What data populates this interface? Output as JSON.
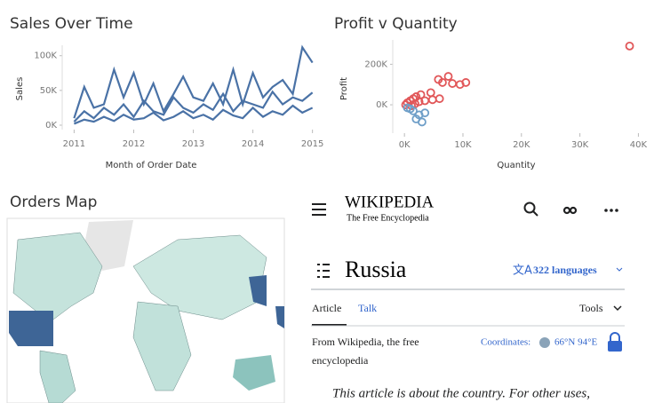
{
  "chart_data": [
    {
      "type": "line",
      "title": "Sales Over Time",
      "y_label": "Sales",
      "x_label": "Month of Order Date",
      "x": [
        2011,
        2011.17,
        2011.33,
        2011.5,
        2011.67,
        2011.83,
        2012,
        2012.17,
        2012.33,
        2012.5,
        2012.67,
        2012.83,
        2013,
        2013.17,
        2013.33,
        2013.5,
        2013.67,
        2013.83,
        2014,
        2014.17,
        2014.33,
        2014.5,
        2014.67,
        2014.83,
        2015
      ],
      "xlim": [
        2010.8,
        2015.05
      ],
      "xticks": [
        2011,
        2012,
        2013,
        2014,
        2015
      ],
      "ylim": [
        0,
        115000
      ],
      "yticks": [
        {
          "value": 0,
          "label": "0K"
        },
        {
          "value": 50000,
          "label": "50K"
        },
        {
          "value": 100000,
          "label": "100K"
        }
      ],
      "series": [
        {
          "color": "#4a72a6",
          "values": [
            10000,
            55000,
            25000,
            30000,
            80000,
            40000,
            75000,
            30000,
            60000,
            20000,
            45000,
            70000,
            40000,
            35000,
            60000,
            30000,
            80000,
            30000,
            75000,
            40000,
            55000,
            65000,
            45000,
            112000,
            90000
          ]
        },
        {
          "color": "#4a72a6",
          "values": [
            5000,
            20000,
            10000,
            25000,
            15000,
            30000,
            12000,
            35000,
            20000,
            15000,
            40000,
            25000,
            18000,
            30000,
            22000,
            45000,
            20000,
            35000,
            30000,
            25000,
            48000,
            30000,
            40000,
            35000,
            47000
          ]
        },
        {
          "color": "#4a72a6",
          "values": [
            2000,
            8000,
            5000,
            12000,
            6000,
            15000,
            8000,
            10000,
            18000,
            7000,
            12000,
            20000,
            10000,
            15000,
            8000,
            22000,
            14000,
            10000,
            25000,
            12000,
            20000,
            15000,
            28000,
            18000,
            25000
          ]
        }
      ]
    },
    {
      "type": "scatter",
      "title": "Profit v Quantity",
      "y_label": "Profit",
      "x_label": "Quantity",
      "xlim": [
        -2000,
        41000
      ],
      "xticks": [
        {
          "value": 0,
          "label": "0K"
        },
        {
          "value": 10000,
          "label": "10K"
        },
        {
          "value": 20000,
          "label": "20K"
        },
        {
          "value": 30000,
          "label": "30K"
        },
        {
          "value": 40000,
          "label": "40K"
        }
      ],
      "ylim": [
        -140000,
        320000
      ],
      "yticks": [
        {
          "value": 0,
          "label": "0K"
        },
        {
          "value": 200000,
          "label": "200K"
        }
      ],
      "series": [
        {
          "color": "#e15759",
          "x": [
            38500,
            10500,
            9500,
            7500,
            6500,
            5800,
            8200,
            4500,
            3500,
            2800,
            2000,
            1500,
            1000,
            500,
            200,
            6000,
            4800,
            2500,
            1800,
            1200
          ],
          "y": [
            290000,
            110000,
            100000,
            140000,
            110000,
            125000,
            105000,
            60000,
            20000,
            50000,
            40000,
            30000,
            20000,
            10000,
            0,
            30000,
            25000,
            15000,
            5000,
            -5000
          ]
        },
        {
          "color": "#6f9fc8",
          "x": [
            1500,
            2500,
            2000,
            3000,
            1000,
            500,
            3500
          ],
          "y": [
            -30000,
            -50000,
            -70000,
            -85000,
            -20000,
            -15000,
            -40000
          ]
        }
      ]
    }
  ],
  "map": {
    "title": "Orders Map"
  },
  "wikipedia": {
    "logo": "WIKIPEDIA",
    "tagline": "The Free Encyclopedia",
    "heading": "Russia",
    "languages": "322 languages",
    "tabs": [
      "Article",
      "Talk"
    ],
    "tools": "Tools",
    "from": [
      "From Wikipedia, the free",
      "encyclopedia"
    ],
    "coordinates_label": "Coordinates:",
    "coordinates": "66°N 94°E",
    "hatnote": "This article is about the country. For other uses,"
  }
}
